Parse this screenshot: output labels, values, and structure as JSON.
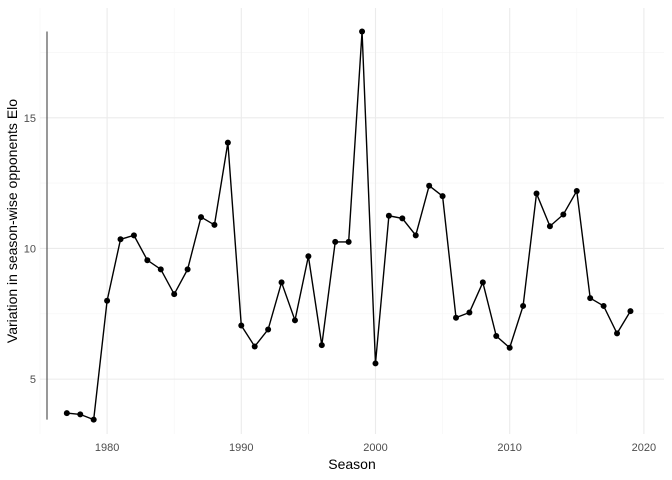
{
  "chart_data": {
    "type": "line",
    "title": "",
    "xlabel": "Season",
    "ylabel": "Variation in season-wise opponents Elo",
    "xlim": [
      1975,
      2021.5
    ],
    "ylim": [
      2.9,
      19.2
    ],
    "x_ticks": [
      1980,
      1990,
      2000,
      2010,
      2020
    ],
    "y_ticks": [
      5,
      10,
      15
    ],
    "grid": true,
    "legend": "none",
    "colors": {
      "line": "#000000",
      "point": "#000000",
      "grid_major": "#ebebeb",
      "grid_minor": "#f5f5f5",
      "rug": "#555555"
    },
    "series": [
      {
        "x": [
          1977,
          1978,
          1979,
          1980,
          1981,
          1982,
          1983,
          1984,
          1985,
          1986,
          1987,
          1988,
          1989,
          1990,
          1991,
          1992,
          1993,
          1994,
          1995,
          1996,
          1997,
          1998,
          1999,
          2000,
          2001,
          2002,
          2003,
          2004,
          2005,
          2006,
          2007,
          2008,
          2009,
          2010,
          2011,
          2012,
          2013,
          2014,
          2015,
          2016,
          2017,
          2018,
          2019
        ],
        "y": [
          3.7,
          3.65,
          3.45,
          8.0,
          10.35,
          10.5,
          9.55,
          9.2,
          8.25,
          9.2,
          11.2,
          10.9,
          14.05,
          7.05,
          6.25,
          6.9,
          8.7,
          7.25,
          9.7,
          6.3,
          10.25,
          10.25,
          18.3,
          5.6,
          11.25,
          11.15,
          10.5,
          12.4,
          12.0,
          7.35,
          7.55,
          8.7,
          6.65,
          6.2,
          7.8,
          12.1,
          10.85,
          11.3,
          12.2,
          8.1,
          7.8,
          6.75,
          7.6
        ]
      }
    ]
  }
}
